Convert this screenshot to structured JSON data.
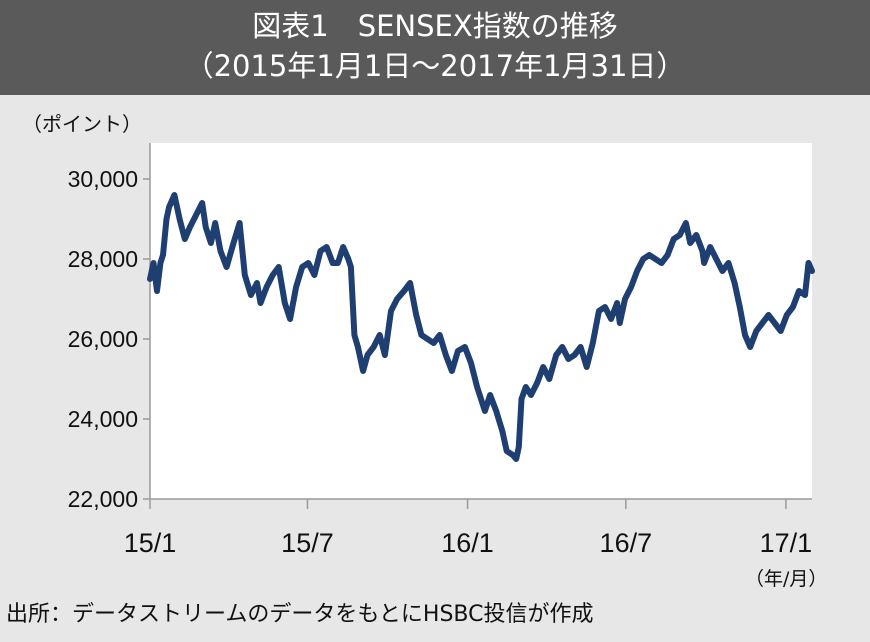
{
  "header": {
    "title_line1": "図表1　SENSEX指数の推移",
    "title_line2": "（2015年1月1日～2017年1月31日）"
  },
  "y_unit": "（ポイント）",
  "x_unit": "（年/月）",
  "source": "出所：データストリームのデータをもとにHSBC投信が作成",
  "colors": {
    "line": "#1f3f73",
    "plot_bg": "#ffffff",
    "page_bg": "#e7e7e7",
    "header_bg": "#5a5a5a"
  },
  "chart_data": {
    "type": "line",
    "title": "図表1　SENSEX指数の推移",
    "subtitle": "（2015年1月1日～2017年1月31日）",
    "ylabel": "（ポイント）",
    "xlabel": "（年/月）",
    "ylim": [
      22000,
      30900
    ],
    "y_ticks": [
      22000,
      24000,
      26000,
      28000,
      30000
    ],
    "y_tick_labels": [
      "22,000",
      "24,000",
      "26,000",
      "28,000",
      "30,000"
    ],
    "x_ticks": [
      "2015-01-01",
      "2015-07-01",
      "2016-01-01",
      "2016-07-01",
      "2017-01-01"
    ],
    "x_tick_labels": [
      "15/1",
      "15/7",
      "16/1",
      "16/7",
      "17/1"
    ],
    "xlim": [
      "2015-01-01",
      "2017-01-31"
    ],
    "grid": false,
    "legend": "none",
    "series": [
      {
        "x": [
          "2015-01-01",
          "2015-01-05",
          "2015-01-09",
          "2015-01-13",
          "2015-01-16",
          "2015-01-20",
          "2015-01-23",
          "2015-01-29",
          "2015-02-04",
          "2015-02-10",
          "2015-02-16",
          "2015-02-23",
          "2015-03-02",
          "2015-03-06",
          "2015-03-12",
          "2015-03-17",
          "2015-03-23",
          "2015-03-30",
          "2015-04-07",
          "2015-04-14",
          "2015-04-20",
          "2015-04-27",
          "2015-05-04",
          "2015-05-08",
          "2015-05-15",
          "2015-05-22",
          "2015-05-29",
          "2015-06-05",
          "2015-06-11",
          "2015-06-18",
          "2015-06-25",
          "2015-07-02",
          "2015-07-09",
          "2015-07-16",
          "2015-07-23",
          "2015-07-30",
          "2015-08-05",
          "2015-08-11",
          "2015-08-17",
          "2015-08-20",
          "2015-08-24",
          "2015-08-28",
          "2015-09-03",
          "2015-09-08",
          "2015-09-15",
          "2015-09-22",
          "2015-09-28",
          "2015-10-05",
          "2015-10-12",
          "2015-10-20",
          "2015-10-27",
          "2015-11-03",
          "2015-11-09",
          "2015-11-16",
          "2015-11-23",
          "2015-11-30",
          "2015-12-07",
          "2015-12-14",
          "2015-12-21",
          "2015-12-29",
          "2016-01-05",
          "2016-01-12",
          "2016-01-18",
          "2016-01-21",
          "2016-01-27",
          "2016-02-03",
          "2016-02-10",
          "2016-02-15",
          "2016-02-22",
          "2016-02-26",
          "2016-02-29",
          "2016-03-03",
          "2016-03-08",
          "2016-03-14",
          "2016-03-21",
          "2016-03-28",
          "2016-04-04",
          "2016-04-12",
          "2016-04-19",
          "2016-04-26",
          "2016-05-03",
          "2016-05-10",
          "2016-05-17",
          "2016-05-24",
          "2016-05-31",
          "2016-06-07",
          "2016-06-14",
          "2016-06-21",
          "2016-06-24",
          "2016-06-30",
          "2016-07-07",
          "2016-07-14",
          "2016-07-21",
          "2016-07-28",
          "2016-08-04",
          "2016-08-11",
          "2016-08-18",
          "2016-08-25",
          "2016-09-01",
          "2016-09-08",
          "2016-09-13",
          "2016-09-20",
          "2016-09-27",
          "2016-09-29",
          "2016-10-06",
          "2016-10-13",
          "2016-10-20",
          "2016-10-27",
          "2016-11-03",
          "2016-11-09",
          "2016-11-15",
          "2016-11-21",
          "2016-11-28",
          "2016-12-05",
          "2016-12-12",
          "2016-12-19",
          "2016-12-26",
          "2017-01-02",
          "2017-01-09",
          "2017-01-16",
          "2017-01-23",
          "2017-01-27",
          "2017-01-31"
        ],
        "values": [
          27500,
          27900,
          27200,
          27900,
          28100,
          29000,
          29300,
          29600,
          29000,
          28500,
          28800,
          29100,
          29400,
          28800,
          28400,
          28900,
          28200,
          27800,
          28400,
          28900,
          27600,
          27100,
          27400,
          26900,
          27300,
          27600,
          27800,
          26900,
          26500,
          27300,
          27800,
          27900,
          27600,
          28200,
          28300,
          27900,
          27900,
          28300,
          28000,
          27800,
          26100,
          25800,
          25200,
          25600,
          25800,
          26100,
          25600,
          26700,
          27000,
          27200,
          27400,
          26600,
          26100,
          26000,
          25900,
          26100,
          25600,
          25200,
          25700,
          25800,
          25400,
          24800,
          24400,
          24200,
          24600,
          24200,
          23700,
          23200,
          23100,
          23000,
          23300,
          24500,
          24800,
          24600,
          24900,
          25300,
          25000,
          25600,
          25800,
          25500,
          25600,
          25800,
          25300,
          25900,
          26700,
          26800,
          26500,
          26900,
          26400,
          27000,
          27300,
          27700,
          28000,
          28100,
          28000,
          27900,
          28100,
          28500,
          28600,
          28900,
          28400,
          28600,
          28200,
          27900,
          28300,
          28000,
          27700,
          27900,
          27400,
          26800,
          26100,
          25800,
          26200,
          26400,
          26600,
          26400,
          26200,
          26600,
          26800,
          27200,
          27100,
          27900,
          27700
        ]
      }
    ]
  }
}
